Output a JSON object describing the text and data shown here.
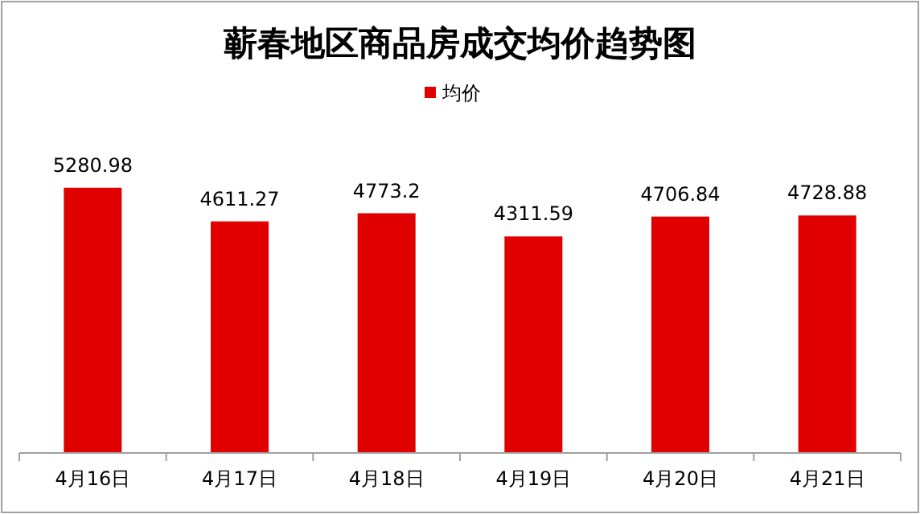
{
  "chart_data": {
    "type": "bar",
    "title": "蕲春地区商品房成交均价趋势图",
    "categories": [
      "4月16日",
      "4月17日",
      "4月18日",
      "4月19日",
      "4月20日",
      "4月21日"
    ],
    "series": [
      {
        "name": "均价",
        "color": "#e00000",
        "values": [
          5280.98,
          4611.27,
          4773.2,
          4311.59,
          4706.84,
          4728.88
        ]
      }
    ],
    "data_labels": true,
    "legend": "top"
  }
}
